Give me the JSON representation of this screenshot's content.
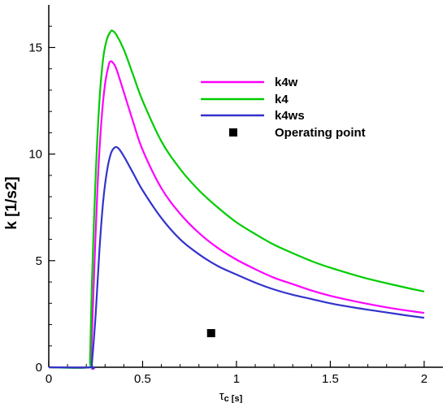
{
  "chart_data": {
    "type": "line",
    "title": "",
    "xlabel": "τc [s]",
    "xlabel_main": "τ",
    "xlabel_sub": "c",
    "xlabel_unit": "[s]",
    "ylabel": "k [1/s2]",
    "xlim": [
      0,
      2.1
    ],
    "ylim": [
      0,
      17
    ],
    "xticks": [
      0,
      0.5,
      1,
      1.5,
      2
    ],
    "xtick_labels": [
      "0",
      "0.5",
      "1",
      "1.5",
      "2"
    ],
    "yticks": [
      0,
      5,
      10,
      15
    ],
    "ytick_labels": [
      "0",
      "5",
      "10",
      "15"
    ],
    "grid": false,
    "legend_position": "top-right",
    "series": [
      {
        "name": "k4w",
        "color": "#ff00ff",
        "points": [
          [
            0,
            0
          ],
          [
            0.22,
            0
          ],
          [
            0.225,
            0.3
          ],
          [
            0.24,
            4.0
          ],
          [
            0.26,
            8.5
          ],
          [
            0.28,
            11.5
          ],
          [
            0.3,
            13.3
          ],
          [
            0.32,
            14.2
          ],
          [
            0.33,
            14.35
          ],
          [
            0.34,
            14.3
          ],
          [
            0.36,
            14.0
          ],
          [
            0.4,
            12.9
          ],
          [
            0.45,
            11.5
          ],
          [
            0.5,
            10.2
          ],
          [
            0.6,
            8.4
          ],
          [
            0.7,
            7.2
          ],
          [
            0.8,
            6.3
          ],
          [
            0.9,
            5.6
          ],
          [
            1.0,
            5.05
          ],
          [
            1.1,
            4.6
          ],
          [
            1.2,
            4.2
          ],
          [
            1.3,
            3.9
          ],
          [
            1.4,
            3.6
          ],
          [
            1.5,
            3.35
          ],
          [
            1.6,
            3.15
          ],
          [
            1.7,
            2.97
          ],
          [
            1.8,
            2.81
          ],
          [
            1.9,
            2.67
          ],
          [
            2.0,
            2.55
          ]
        ]
      },
      {
        "name": "k4",
        "color": "#00cc00",
        "points": [
          [
            0,
            0
          ],
          [
            0.215,
            0
          ],
          [
            0.22,
            0.4
          ],
          [
            0.23,
            4.0
          ],
          [
            0.25,
            9.0
          ],
          [
            0.27,
            12.5
          ],
          [
            0.29,
            14.5
          ],
          [
            0.31,
            15.4
          ],
          [
            0.33,
            15.75
          ],
          [
            0.34,
            15.78
          ],
          [
            0.36,
            15.6
          ],
          [
            0.4,
            14.9
          ],
          [
            0.45,
            13.7
          ],
          [
            0.5,
            12.5
          ],
          [
            0.6,
            10.6
          ],
          [
            0.7,
            9.3
          ],
          [
            0.8,
            8.3
          ],
          [
            0.9,
            7.5
          ],
          [
            1.0,
            6.8
          ],
          [
            1.1,
            6.25
          ],
          [
            1.2,
            5.75
          ],
          [
            1.3,
            5.35
          ],
          [
            1.4,
            4.98
          ],
          [
            1.5,
            4.67
          ],
          [
            1.6,
            4.4
          ],
          [
            1.7,
            4.15
          ],
          [
            1.8,
            3.94
          ],
          [
            1.9,
            3.74
          ],
          [
            2.0,
            3.55
          ]
        ]
      },
      {
        "name": "k4ws",
        "color": "#3333cc",
        "points": [
          [
            0,
            0
          ],
          [
            0.225,
            0
          ],
          [
            0.23,
            0.2
          ],
          [
            0.25,
            2.5
          ],
          [
            0.27,
            5.5
          ],
          [
            0.29,
            7.8
          ],
          [
            0.31,
            9.2
          ],
          [
            0.33,
            10.0
          ],
          [
            0.35,
            10.3
          ],
          [
            0.37,
            10.28
          ],
          [
            0.4,
            9.9
          ],
          [
            0.45,
            9.1
          ],
          [
            0.5,
            8.3
          ],
          [
            0.6,
            7.0
          ],
          [
            0.7,
            6.0
          ],
          [
            0.8,
            5.3
          ],
          [
            0.9,
            4.75
          ],
          [
            1.0,
            4.35
          ],
          [
            1.1,
            3.97
          ],
          [
            1.2,
            3.65
          ],
          [
            1.3,
            3.4
          ],
          [
            1.4,
            3.2
          ],
          [
            1.5,
            3.0
          ],
          [
            1.6,
            2.84
          ],
          [
            1.7,
            2.7
          ],
          [
            1.8,
            2.57
          ],
          [
            1.9,
            2.44
          ],
          [
            2.0,
            2.32
          ]
        ]
      }
    ],
    "operating_point": {
      "name": "Operating point",
      "x": 0.865,
      "y": 1.6,
      "color": "#000000",
      "marker": "square"
    }
  }
}
